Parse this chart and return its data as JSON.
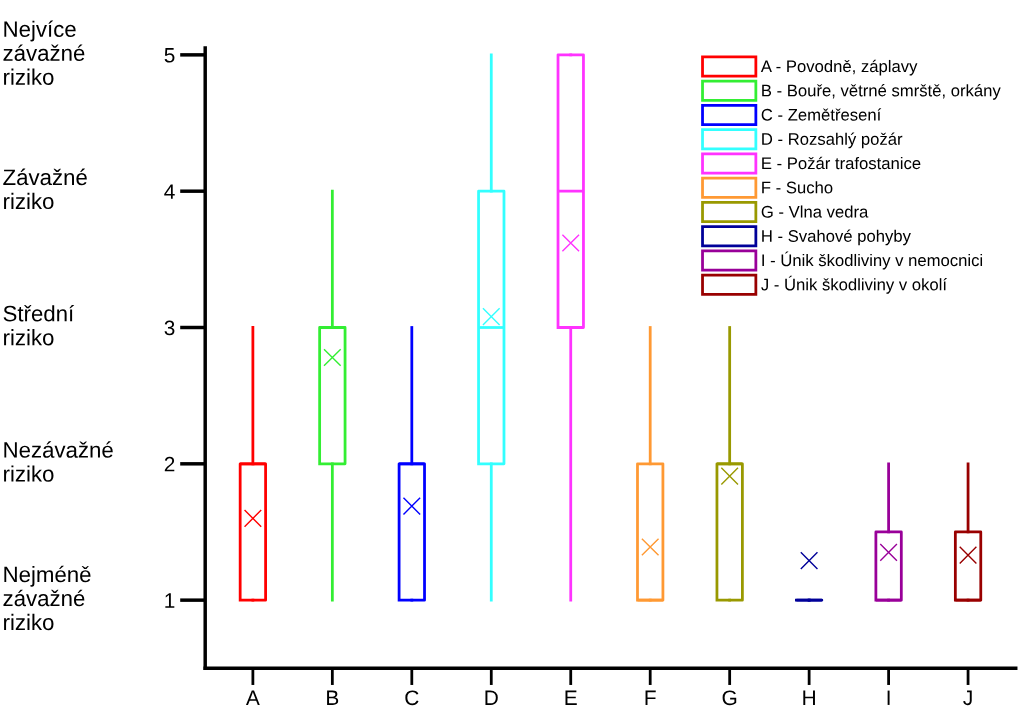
{
  "chart_data": {
    "type": "box",
    "categories": [
      "A",
      "B",
      "C",
      "D",
      "E",
      "F",
      "G",
      "H",
      "I",
      "J"
    ],
    "ylim": [
      0.5,
      5.05
    ],
    "yticks": [
      1,
      2,
      3,
      4,
      5
    ],
    "grid": false,
    "legend": "top right",
    "marker": "cross",
    "series": [
      {
        "name": "A - Povodně, záplavy",
        "color": "#ff0000",
        "boxes": [
          {
            "low": 1,
            "q1": 1,
            "median": 2,
            "q3": 2,
            "high": 3,
            "mean": 1.6
          },
          null,
          null,
          null,
          null,
          null,
          null,
          null,
          null,
          null
        ]
      },
      {
        "name": "B - Bouře, větrné smrště, orkány",
        "color": "#33ee33",
        "boxes": [
          null,
          {
            "low": 1,
            "q1": 2,
            "median": 3,
            "q3": 3,
            "high": 4,
            "mean": 2.78
          },
          null,
          null,
          null,
          null,
          null,
          null,
          null,
          null
        ]
      },
      {
        "name": "C - Zemětřesení",
        "color": "#0000ff",
        "boxes": [
          null,
          null,
          {
            "low": 1,
            "q1": 1,
            "median": 2,
            "q3": 2,
            "high": 3,
            "mean": 1.69
          },
          null,
          null,
          null,
          null,
          null,
          null,
          null
        ]
      },
      {
        "name": "D - Rozsahlý požár",
        "color": "#33ffff",
        "boxes": [
          null,
          null,
          null,
          {
            "low": 1,
            "q1": 2,
            "median": 3,
            "q3": 4,
            "high": 5,
            "mean": 3.08
          },
          null,
          null,
          null,
          null,
          null,
          null
        ]
      },
      {
        "name": "E - Požár trafostanice",
        "color": "#ff33ff",
        "boxes": [
          null,
          null,
          null,
          null,
          {
            "low": 1,
            "q1": 3,
            "median": 4,
            "q3": 5,
            "high": 5,
            "mean": 3.62
          },
          null,
          null,
          null,
          null,
          null
        ]
      },
      {
        "name": "F - Sucho",
        "color": "#ff9933",
        "boxes": [
          null,
          null,
          null,
          null,
          null,
          {
            "low": 1,
            "q1": 1,
            "median": 1,
            "q3": 2,
            "high": 3,
            "mean": 1.39
          },
          null,
          null,
          null,
          null
        ]
      },
      {
        "name": "G - Vlna vedra",
        "color": "#999900",
        "boxes": [
          null,
          null,
          null,
          null,
          null,
          null,
          {
            "low": 1,
            "q1": 1,
            "median": 2,
            "q3": 2,
            "high": 3,
            "mean": 1.91
          },
          null,
          null,
          null
        ]
      },
      {
        "name": "H - Svahové pohyby",
        "color": "#000099",
        "boxes": [
          null,
          null,
          null,
          null,
          null,
          null,
          null,
          {
            "low": 1,
            "q1": 1,
            "median": 1,
            "q3": 1,
            "high": 1,
            "mean": 1.29
          },
          null,
          null
        ]
      },
      {
        "name": "I - Únik škodliviny v nemocnici",
        "color": "#990099",
        "boxes": [
          null,
          null,
          null,
          null,
          null,
          null,
          null,
          null,
          {
            "low": 1,
            "q1": 1,
            "median": 1,
            "q3": 1.5,
            "high": 2,
            "mean": 1.35
          },
          null
        ]
      },
      {
        "name": "J - Únik škodliviny v okolí",
        "color": "#990000",
        "boxes": [
          null,
          null,
          null,
          null,
          null,
          null,
          null,
          null,
          null,
          {
            "low": 1,
            "q1": 1,
            "median": 1,
            "q3": 1.5,
            "high": 2,
            "mean": 1.33
          }
        ]
      }
    ],
    "annotations": [
      "Nejvíce\nzávažné\nriziko",
      "Závažné\nriziko",
      "Střední\nriziko",
      "Nezávažné\nriziko",
      "Nejméně\nzávažné\nriziko"
    ]
  }
}
